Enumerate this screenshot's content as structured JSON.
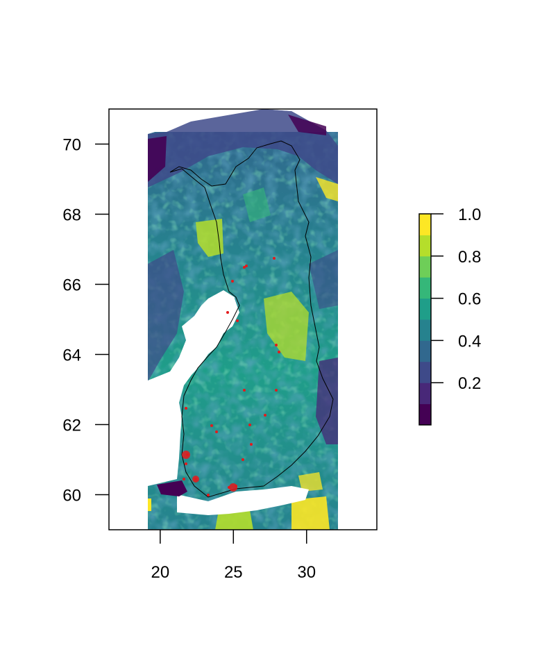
{
  "map": {
    "x_ticks": [
      "20",
      "25",
      "30"
    ],
    "y_ticks": [
      "60",
      "62",
      "64",
      "66",
      "68",
      "70"
    ],
    "x_range": [
      16.5,
      34.8
    ],
    "y_range": [
      59.0,
      71.0
    ],
    "raster_extent": {
      "lon": [
        19.0,
        32.0
      ],
      "lat": [
        59.0,
        71.0
      ]
    },
    "border_color": "#000000",
    "point_color": "#e31a1c"
  },
  "legend": {
    "ticks": [
      "0.2",
      "0.4",
      "0.6",
      "0.8",
      "1.0"
    ],
    "range": [
      0.0,
      1.0
    ],
    "bins": 10,
    "colors": [
      "#440154",
      "#482878",
      "#3e4a89",
      "#31688e",
      "#26828e",
      "#1f9e89",
      "#35b779",
      "#6ece58",
      "#b5de2b",
      "#fde725"
    ]
  }
}
